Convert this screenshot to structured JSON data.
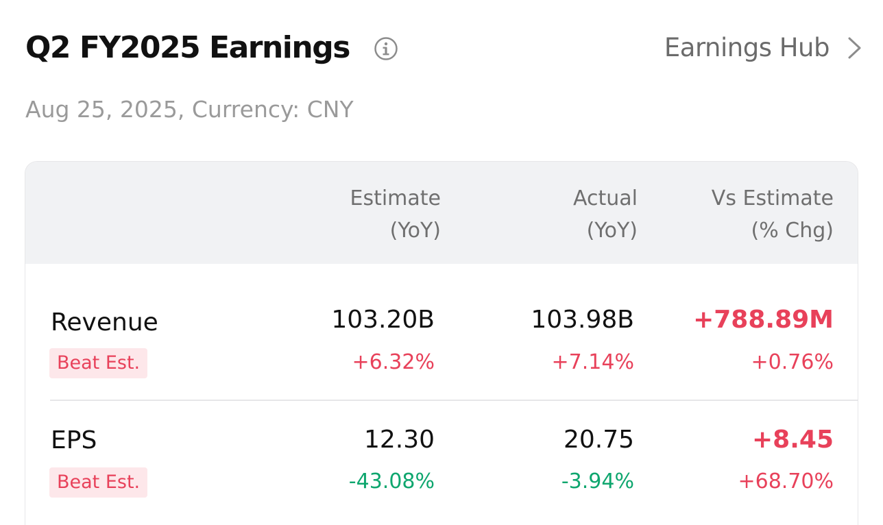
{
  "header": {
    "title": "Q2 FY2025 Earnings",
    "hub_link": "Earnings Hub",
    "subtitle": "Aug 25, 2025, Currency: CNY"
  },
  "icons": {
    "info": "info-icon",
    "chevron": "chevron-right-icon"
  },
  "colors": {
    "positive": "#e8415a",
    "negative": "#0ea66e",
    "badge_bg": "#fde7ea"
  },
  "table": {
    "columns": [
      {
        "line1": "Estimate",
        "line2": "(YoY)"
      },
      {
        "line1": "Actual",
        "line2": "(YoY)"
      },
      {
        "line1": "Vs Estimate",
        "line2": "(% Chg)"
      }
    ],
    "rows": [
      {
        "label": "Revenue",
        "badge": "Beat Est.",
        "estimate": "103.20B",
        "estimate_yoy": "+6.32%",
        "actual": "103.98B",
        "actual_yoy": "+7.14%",
        "vs_estimate": "+788.89M",
        "vs_estimate_pct": "+0.76%"
      },
      {
        "label": "EPS",
        "badge": "Beat Est.",
        "estimate": "12.30",
        "estimate_yoy": "-43.08%",
        "actual": "20.75",
        "actual_yoy": "-3.94%",
        "vs_estimate": "+8.45",
        "vs_estimate_pct": "+68.70%"
      }
    ]
  }
}
